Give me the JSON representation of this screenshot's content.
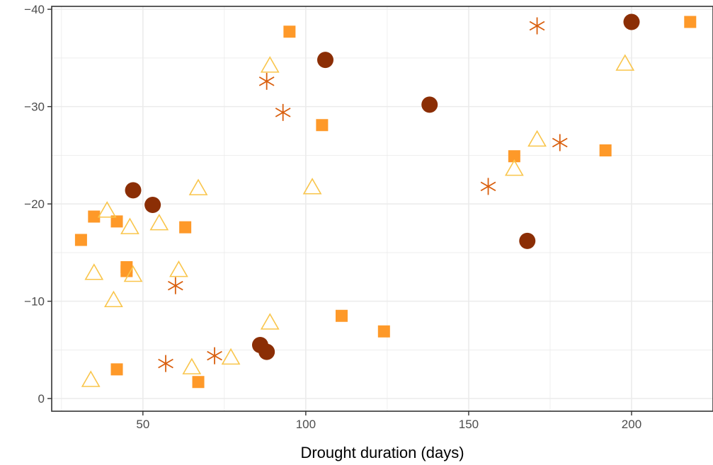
{
  "chart_data": {
    "type": "scatter",
    "title": "",
    "xlabel": "Drought duration (days)",
    "ylabel": "",
    "xlim": [
      22,
      225
    ],
    "ylim": [
      1.3,
      -40.3
    ],
    "y_reversed": true,
    "grid": true,
    "legend": "none",
    "x_ticks": [
      50,
      100,
      150,
      200
    ],
    "x_tick_labels": [
      "50",
      "100",
      "150",
      "200"
    ],
    "y_ticks": [
      -40,
      -30,
      -20,
      -10,
      0
    ],
    "y_tick_labels": [
      "−40",
      "−30",
      "−20",
      "−10",
      "0"
    ],
    "series": [
      {
        "shape": "circle",
        "color": "#8B2E05",
        "points": [
          {
            "x": 47,
            "y": -21.4
          },
          {
            "x": 53,
            "y": -19.9
          },
          {
            "x": 86,
            "y": -5.5
          },
          {
            "x": 88,
            "y": -4.8
          },
          {
            "x": 106,
            "y": -34.8
          },
          {
            "x": 138,
            "y": -30.2
          },
          {
            "x": 168,
            "y": -16.2
          },
          {
            "x": 200,
            "y": -38.7
          }
        ]
      },
      {
        "shape": "asterisk",
        "color": "#D95F0E",
        "points": [
          {
            "x": 57,
            "y": -3.6
          },
          {
            "x": 60,
            "y": -11.6
          },
          {
            "x": 72,
            "y": -4.4
          },
          {
            "x": 88,
            "y": -32.6
          },
          {
            "x": 93,
            "y": -29.4
          },
          {
            "x": 156,
            "y": -21.8
          },
          {
            "x": 171,
            "y": -38.3
          },
          {
            "x": 178,
            "y": -26.3
          }
        ]
      },
      {
        "shape": "square",
        "color": "#FE9929",
        "points": [
          {
            "x": 31,
            "y": -16.3
          },
          {
            "x": 35,
            "y": -18.7
          },
          {
            "x": 42,
            "y": -18.2
          },
          {
            "x": 42,
            "y": -3.0
          },
          {
            "x": 45,
            "y": -13.5
          },
          {
            "x": 45,
            "y": -13.1
          },
          {
            "x": 63,
            "y": -17.6
          },
          {
            "x": 67,
            "y": -1.7
          },
          {
            "x": 95,
            "y": -37.7
          },
          {
            "x": 105,
            "y": -28.1
          },
          {
            "x": 111,
            "y": -8.5
          },
          {
            "x": 124,
            "y": -6.9
          },
          {
            "x": 164,
            "y": -24.9
          },
          {
            "x": 192,
            "y": -25.5
          },
          {
            "x": 218,
            "y": -38.7
          }
        ]
      },
      {
        "shape": "triangle-open",
        "color": "#F9C54B",
        "points": [
          {
            "x": 34,
            "y": -1.9
          },
          {
            "x": 35,
            "y": -12.9
          },
          {
            "x": 39,
            "y": -19.3
          },
          {
            "x": 41,
            "y": -10.1
          },
          {
            "x": 46,
            "y": -17.6
          },
          {
            "x": 47,
            "y": -12.7
          },
          {
            "x": 55,
            "y": -18.0
          },
          {
            "x": 61,
            "y": -13.2
          },
          {
            "x": 65,
            "y": -3.2
          },
          {
            "x": 67,
            "y": -21.6
          },
          {
            "x": 77,
            "y": -4.2
          },
          {
            "x": 89,
            "y": -7.8
          },
          {
            "x": 89,
            "y": -34.2
          },
          {
            "x": 102,
            "y": -21.7
          },
          {
            "x": 164,
            "y": -23.6
          },
          {
            "x": 171,
            "y": -26.6
          },
          {
            "x": 198,
            "y": -34.4
          }
        ]
      }
    ]
  }
}
